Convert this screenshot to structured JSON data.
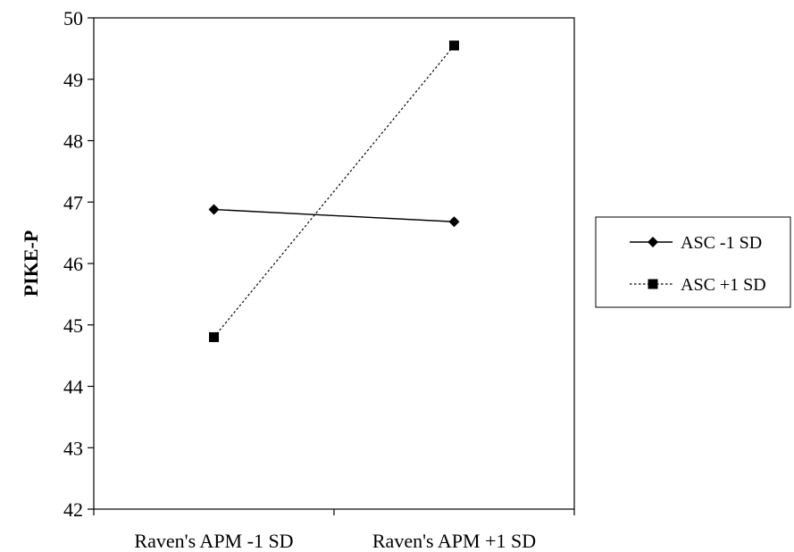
{
  "chart_data": {
    "type": "line",
    "categories": [
      "Raven's APM -1 SD",
      "Raven's APM +1 SD"
    ],
    "series": [
      {
        "name": "ASC -1 SD",
        "values": [
          46.88,
          46.68
        ],
        "marker": "diamond",
        "line": "solid"
      },
      {
        "name": "ASC +1 SD",
        "values": [
          44.8,
          49.55
        ],
        "marker": "square",
        "line": "dotted"
      }
    ],
    "title": "",
    "xlabel": "",
    "ylabel": "PIKE-P",
    "ylim": [
      42,
      50
    ],
    "yticks": [
      "42",
      "43",
      "44",
      "45",
      "46",
      "47",
      "48",
      "49",
      "50"
    ],
    "grid": false,
    "legend_position": "right"
  }
}
